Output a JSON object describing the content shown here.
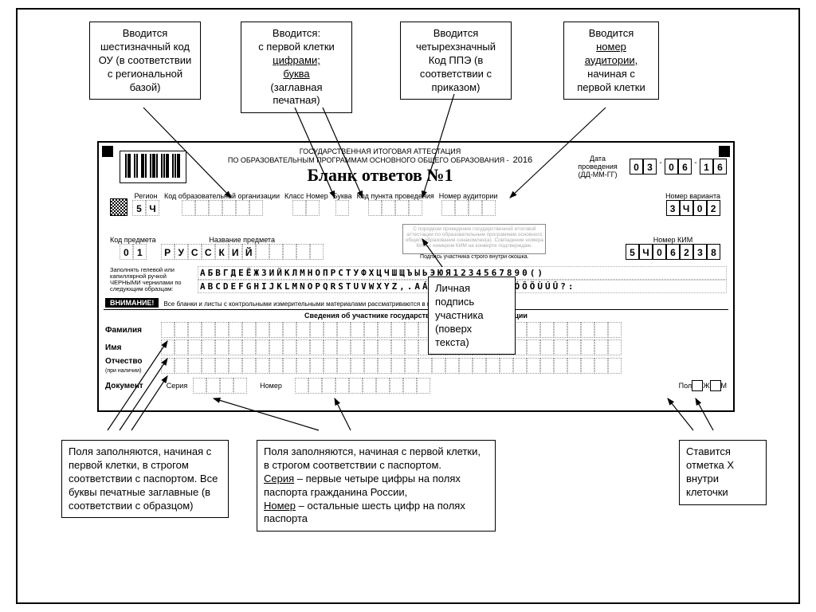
{
  "callouts": {
    "c1": "Вводится шестизначный код ОУ (в соответствии с региональной базой)",
    "c2_l1": "Вводится:",
    "c2_l2": "с первой клетки",
    "c2_l3": "цифрами;",
    "c2_l4": "буква",
    "c2_l5": "(заглавная печатная)",
    "c3": "Вводится четырехзначный Код ППЭ (в соответствии с приказом)",
    "c4_l1": "Вводится",
    "c4_l2": "номер",
    "c4_l3": "аудитории,",
    "c4_l4": "начиная с первой клетки",
    "c5_l1": "Личная подпись участника (поверх текста)",
    "c6": "Поля заполняются, начиная с первой клетки, в строгом соответствии с паспортом. Все буквы печатные заглавные (в соответствии с образцом)",
    "c7_l1": "Поля заполняются, начиная с первой клетки, в строгом соответствии с паспортом.",
    "c7_l2a": "Серия",
    "c7_l2b": " – первые четыре цифры на полях паспорта гражданина России,",
    "c7_l3a": "Номер",
    "c7_l3b": " – остальные шесть цифр на полях паспорта",
    "c8": "Ставится отметка  X внутри клеточки"
  },
  "header": {
    "l1": "ГОСУДАРСТВЕННАЯ ИТОГОВАЯ АТТЕСТАЦИЯ",
    "l2": "ПО ОБРАЗОВАТЕЛЬНЫМ ПРОГРАММАМ ОСНОВНОГО ОБЩЕГО ОБРАЗОВАНИЯ -",
    "year": "2016",
    "title": "Бланк ответов №1",
    "date_lbl": "Дата проведения (ДД-ММ-ГГ)",
    "date": [
      "0",
      "3",
      "-",
      "0",
      "6",
      "-",
      "1",
      "6"
    ]
  },
  "labels": {
    "region": "Регион",
    "edu_code": "Код образовательной организации",
    "class_num": "Класс Номер",
    "class_let": "Буква",
    "ppe": "Код пункта проведения",
    "aud": "Номер аудитории",
    "variant": "Номер варианта",
    "subj_code": "Код предмета",
    "subj_name": "Название предмета",
    "kim": "Номер КИМ",
    "sig_caption": "Подпись участника строго внутри окошка.",
    "ink": "Заполнять гелевой или капиллярной ручкой ЧЕРНЫМИ чернилами по следующим образцам:",
    "attention": "ВНИМАНИЕ!",
    "attention_text": "Все бланки и листы с контрольными измерительными материалами рассматриваются в комплекте.",
    "participant": "Сведения об участнике государственной итоговой аттестации",
    "fam": "Фамилия",
    "name": "Имя",
    "otch": "Отчество",
    "otch2": "(при наличии)",
    "doc": "Документ",
    "ser": "Серия",
    "num": "Номер",
    "pol": "Пол",
    "f": "Ж",
    "m": "М"
  },
  "values": {
    "region": [
      "5",
      "Ч"
    ],
    "edu_code": [
      "",
      "",
      "",
      "",
      "",
      ""
    ],
    "class_num": [
      "",
      ""
    ],
    "class_let": [
      ""
    ],
    "ppe": [
      "",
      "",
      "",
      ""
    ],
    "aud": [
      "",
      "",
      "",
      ""
    ],
    "variant": [
      "3",
      "Ч",
      "0",
      "2"
    ],
    "subj_code": [
      "0",
      "1"
    ],
    "subj_name": [
      "Р",
      "У",
      "С",
      "С",
      "К",
      "И",
      "Й",
      "",
      "",
      "",
      "",
      ""
    ],
    "kim": [
      "5",
      "Ч",
      "0",
      "6",
      "2",
      "3",
      "8"
    ]
  },
  "alphabet": {
    "row1": "АБВГДЕЁЖЗИЙКЛМНОПРСТУФХЦЧШЩЪЫЬЭЮЯ1234567890()",
    "row2": "ABCDEFGHIJKLMNOPQRSTUVWXYZ,.АÁÂÄÈÉÊËÌÍÎÏÒÓÔÖÙÚÛ?:"
  },
  "sigbox": "С порядком проведения государственной итоговой аттестации по образовательным программам основного общего образования ознакомлен(а). Совпадение номера КИМ с номером КИМ на конверте подтверждаю."
}
